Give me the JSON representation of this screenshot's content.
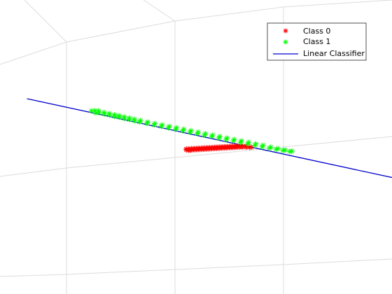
{
  "chart_data": {
    "type": "scatter",
    "view": "3d",
    "grid": true,
    "legend_position": "top-right",
    "colors": {
      "class0": "#ff0000",
      "class1": "#00ff00",
      "classifier": "#0000cc",
      "grid": "#dcdcdc"
    },
    "series": [
      {
        "name": "Class 0",
        "marker": "asterisk",
        "color": "#ff0000",
        "points": [
          [
            0.55,
            0.02
          ],
          [
            0.56,
            0.04
          ],
          [
            0.57,
            0.01
          ],
          [
            0.58,
            0.05
          ],
          [
            0.59,
            0.03
          ],
          [
            0.6,
            0.06
          ],
          [
            0.61,
            0.04
          ],
          [
            0.62,
            0.07
          ],
          [
            0.63,
            0.05
          ],
          [
            0.64,
            0.08
          ],
          [
            0.65,
            0.06
          ],
          [
            0.66,
            0.09
          ],
          [
            0.67,
            0.07
          ],
          [
            0.68,
            0.1
          ],
          [
            0.69,
            0.08
          ],
          [
            0.7,
            0.11
          ],
          [
            0.71,
            0.09
          ],
          [
            0.72,
            0.12
          ],
          [
            0.73,
            0.1
          ],
          [
            0.74,
            0.13
          ],
          [
            0.75,
            0.11
          ],
          [
            0.76,
            0.14
          ],
          [
            0.77,
            0.12
          ],
          [
            0.78,
            0.15
          ],
          [
            0.79,
            0.13
          ],
          [
            0.8,
            0.16
          ],
          [
            0.81,
            0.14
          ],
          [
            0.82,
            0.17
          ],
          [
            0.83,
            0.15
          ],
          [
            0.84,
            0.18
          ],
          [
            0.85,
            0.16
          ],
          [
            0.86,
            0.19
          ],
          [
            0.87,
            0.17
          ],
          [
            0.88,
            0.2
          ],
          [
            0.89,
            0.18
          ],
          [
            0.9,
            0.21
          ],
          [
            0.91,
            0.19
          ],
          [
            0.92,
            0.22
          ],
          [
            0.93,
            0.2
          ],
          [
            0.94,
            0.23
          ],
          [
            0.95,
            0.21
          ],
          [
            0.96,
            0.24
          ],
          [
            0.97,
            0.22
          ],
          [
            0.98,
            0.25
          ],
          [
            0.99,
            0.23
          ],
          [
            1.0,
            0.26
          ],
          [
            1.01,
            0.24
          ],
          [
            1.02,
            0.27
          ],
          [
            1.03,
            0.25
          ],
          [
            1.04,
            0.28
          ],
          [
            1.05,
            0.26
          ],
          [
            1.06,
            0.29
          ],
          [
            1.07,
            0.27
          ],
          [
            1.08,
            0.3
          ],
          [
            1.09,
            0.28
          ],
          [
            1.1,
            0.31
          ],
          [
            1.11,
            0.29
          ],
          [
            1.12,
            0.32
          ],
          [
            1.13,
            0.3
          ],
          [
            1.14,
            0.33
          ],
          [
            1.15,
            0.31
          ],
          [
            1.16,
            0.34
          ],
          [
            1.17,
            0.32
          ],
          [
            1.18,
            0.35
          ],
          [
            1.19,
            0.33
          ],
          [
            1.2,
            0.36
          ],
          [
            1.22,
            0.34
          ],
          [
            1.24,
            0.37
          ],
          [
            1.26,
            0.35
          ],
          [
            1.28,
            0.38
          ],
          [
            1.3,
            0.36
          ],
          [
            1.32,
            0.37
          ]
        ]
      },
      {
        "name": "Class 1",
        "marker": "asterisk",
        "color": "#00ff00",
        "points": [
          [
            0.05,
            0.95
          ],
          [
            0.07,
            0.9
          ],
          [
            0.09,
            0.97
          ],
          [
            0.11,
            0.92
          ],
          [
            0.13,
            0.98
          ],
          [
            0.15,
            0.9
          ],
          [
            0.17,
            0.95
          ],
          [
            0.19,
            0.88
          ],
          [
            0.21,
            0.93
          ],
          [
            0.23,
            0.86
          ],
          [
            0.25,
            0.91
          ],
          [
            0.27,
            0.85
          ],
          [
            0.29,
            0.9
          ],
          [
            0.31,
            0.83
          ],
          [
            0.33,
            0.88
          ],
          [
            0.35,
            0.81
          ],
          [
            0.37,
            0.86
          ],
          [
            0.39,
            0.79
          ],
          [
            0.41,
            0.84
          ],
          [
            0.43,
            0.77
          ],
          [
            0.46,
            0.82
          ],
          [
            0.49,
            0.75
          ],
          [
            0.52,
            0.8
          ],
          [
            0.55,
            0.73
          ],
          [
            0.58,
            0.78
          ],
          [
            0.61,
            0.71
          ],
          [
            0.64,
            0.76
          ],
          [
            0.67,
            0.69
          ],
          [
            0.7,
            0.74
          ],
          [
            0.73,
            0.67
          ],
          [
            0.76,
            0.72
          ],
          [
            0.79,
            0.65
          ],
          [
            0.82,
            0.7
          ],
          [
            0.85,
            0.63
          ],
          [
            0.88,
            0.68
          ],
          [
            0.91,
            0.61
          ],
          [
            0.94,
            0.66
          ],
          [
            0.97,
            0.59
          ],
          [
            1.0,
            0.64
          ],
          [
            1.03,
            0.57
          ],
          [
            1.06,
            0.62
          ],
          [
            1.09,
            0.55
          ],
          [
            1.12,
            0.6
          ],
          [
            1.15,
            0.53
          ],
          [
            1.18,
            0.58
          ],
          [
            1.21,
            0.51
          ],
          [
            1.24,
            0.56
          ],
          [
            1.27,
            0.49
          ],
          [
            1.3,
            0.54
          ],
          [
            1.33,
            0.47
          ],
          [
            1.36,
            0.52
          ],
          [
            1.39,
            0.45
          ],
          [
            1.42,
            0.5
          ],
          [
            1.45,
            0.43
          ],
          [
            1.48,
            0.48
          ],
          [
            1.51,
            0.41
          ],
          [
            1.54,
            0.45
          ],
          [
            1.57,
            0.4
          ],
          [
            1.6,
            0.43
          ],
          [
            1.63,
            0.39
          ],
          [
            1.66,
            0.41
          ],
          [
            1.69,
            0.38
          ],
          [
            1.72,
            0.4
          ]
        ]
      },
      {
        "name": "Linear Classifier",
        "type": "line",
        "color": "#0000cc",
        "points": [
          [
            -0.5,
            1.1
          ],
          [
            2.5,
            -0.1
          ]
        ]
      }
    ]
  }
}
